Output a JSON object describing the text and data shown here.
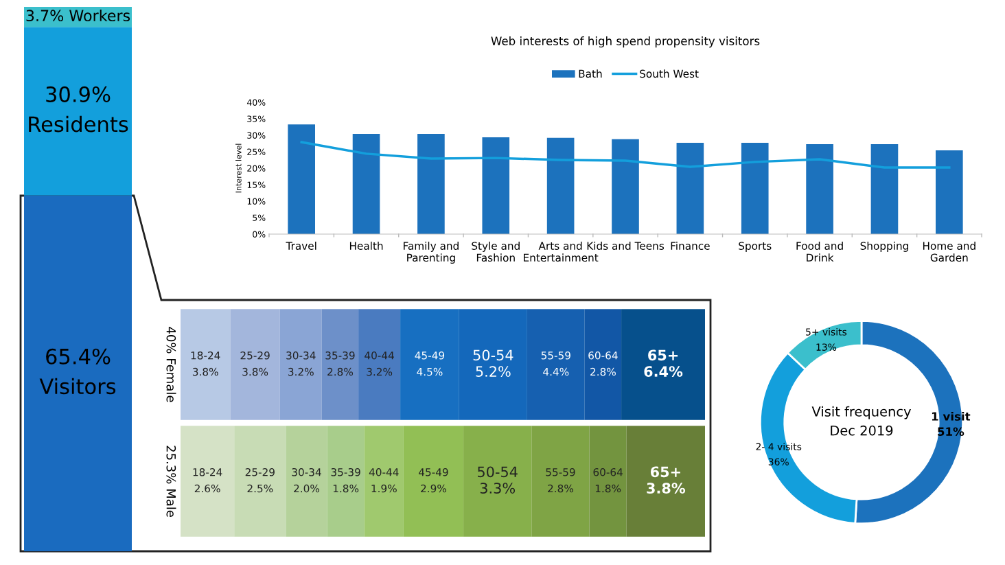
{
  "chart_data": [
    {
      "type": "bar",
      "stacked": true,
      "categories": [
        null
      ],
      "series": [
        {
          "name": "Visitors",
          "color": "#1a6bbf",
          "values": [
            65.4
          ],
          "value_labels": [
            "65.4%"
          ]
        },
        {
          "name": "Residents",
          "color": "#139fdc",
          "values": [
            30.9
          ],
          "value_labels": [
            "30.9%"
          ]
        },
        {
          "name": "Workers",
          "color": "#3bbfcc",
          "values": [
            3.7
          ],
          "value_labels": [
            "3.7%"
          ]
        }
      ]
    },
    {
      "type": "bar",
      "title": "Web interests of high spend propensity visitors",
      "ylabel": "Interest level",
      "categories": [
        "Travel",
        "Health",
        "Family and\nParenting",
        "Style and\nFashion",
        "Arts and\nEntertainment",
        "Kids and Teens",
        "Finance",
        "Sports",
        "Food and\nDrink",
        "Shopping",
        "Home and\nGarden"
      ],
      "series": [
        {
          "name": "Bath",
          "color": "#1c72bd",
          "values": [
            33.3,
            30.4,
            30.4,
            29.4,
            29.2,
            28.8,
            27.7,
            27.7,
            27.3,
            27.3,
            25.4
          ]
        },
        {
          "name": "South West",
          "type": "line",
          "color": "#139fdc",
          "values": [
            27.9,
            24.4,
            22.9,
            23.1,
            22.5,
            22.3,
            20.4,
            21.9,
            22.7,
            20.2,
            20.2
          ]
        }
      ],
      "ylim": [
        0,
        40
      ],
      "yticks": [
        {
          "value": 0,
          "label": "0%"
        },
        {
          "value": 5,
          "label": "5%"
        },
        {
          "value": 10,
          "label": "10%"
        },
        {
          "value": 15,
          "label": "15%"
        },
        {
          "value": 20,
          "label": "20%"
        },
        {
          "value": 25,
          "label": "25%"
        },
        {
          "value": 30,
          "label": "30%"
        },
        {
          "value": 35,
          "label": "35%"
        },
        {
          "value": 40,
          "label": "40%"
        }
      ],
      "legend": "top",
      "grid": false
    },
    {
      "type": "other",
      "categories": [
        "18-24",
        "25-29",
        "30-34",
        "35-39",
        "40-44",
        "45-49",
        "50-54",
        "55-59",
        "60-64",
        "65+"
      ],
      "series": [
        {
          "name": "40% Female",
          "values": [
            3.8,
            3.8,
            3.2,
            2.8,
            3.2,
            4.5,
            5.2,
            4.4,
            2.8,
            6.4
          ],
          "value_labels": [
            "3.8%",
            "3.8%",
            "3.2%",
            "2.8%",
            "3.2%",
            "4.5%",
            "5.2%",
            "4.4%",
            "2.8%",
            "6.4%"
          ],
          "colors": [
            "#b7c9e5",
            "#a3b6dc",
            "#8aa5d5",
            "#6d90c9",
            "#4a7bc0",
            "#176fc1",
            "#1468bb",
            "#1660b0",
            "#1257a6",
            "#06508c"
          ]
        },
        {
          "name": "25.3% Male",
          "values": [
            2.6,
            2.5,
            2.0,
            1.8,
            1.9,
            2.9,
            3.3,
            2.8,
            1.8,
            3.8
          ],
          "value_labels": [
            "2.6%",
            "2.5%",
            "2.0%",
            "1.8%",
            "1.9%",
            "2.9%",
            "3.3%",
            "2.8%",
            "1.8%",
            "3.8%"
          ],
          "colors": [
            "#d5e2c6",
            "#c8dcb5",
            "#b5d29b",
            "#a8cd8b",
            "#a0c96e",
            "#92bf55",
            "#87b04b",
            "#7fa445",
            "#73943f",
            "#687f38"
          ]
        }
      ]
    },
    {
      "type": "donut",
      "title": "Visit frequency\nDec 2019",
      "categories": [
        "1 visit",
        "2- 4 visits",
        "5+ visits"
      ],
      "values": [
        51,
        36,
        13
      ],
      "value_labels": [
        "51%",
        "36%",
        "13%"
      ],
      "colors": [
        "#1c72bd",
        "#139fdc",
        "#3bbfcc"
      ]
    }
  ]
}
